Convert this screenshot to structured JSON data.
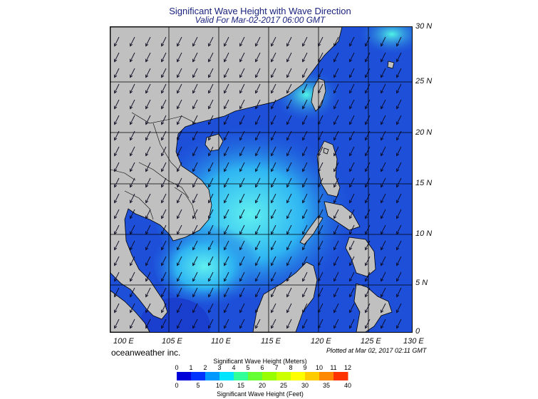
{
  "title": "Significant Wave Height with Wave Direction",
  "subtitle": "Valid For Mar-02-2017 06:00 GMT",
  "latitudes": [
    "30 N",
    "25 N",
    "20 N",
    "15 N",
    "10 N",
    "5 N",
    "0"
  ],
  "longitudes": [
    "100 E",
    "105 E",
    "110 E",
    "115 E",
    "120 E",
    "125 E",
    "130 E"
  ],
  "brand": "oceanweather inc.",
  "plotted_note": "Plotted at Mar 02, 2017 02:11 GMT",
  "colorbar": {
    "title_meters": "Significant Wave Height (Meters)",
    "title_feet": "Significant Wave Height (Feet)",
    "meters_ticks": [
      "0",
      "1",
      "2",
      "3",
      "4",
      "5",
      "6",
      "7",
      "8",
      "9",
      "10",
      "11",
      "12"
    ],
    "feet_ticks": [
      "0",
      "5",
      "10",
      "15",
      "20",
      "25",
      "30",
      "35",
      "40"
    ],
    "colors": [
      "#0000d8",
      "#0033ff",
      "#0099ff",
      "#00e5ff",
      "#33ff99",
      "#66ff33",
      "#99ff00",
      "#ccff00",
      "#ffff00",
      "#ffcc00",
      "#ff8800",
      "#ff3300"
    ]
  },
  "colors": {
    "land": "#c0c0c0",
    "ocean_deep": "#1d4fd9",
    "ocean_mid": "#2b8cf0",
    "ocean_high": "#3de3f0",
    "arrow": "#0a0a20"
  }
}
